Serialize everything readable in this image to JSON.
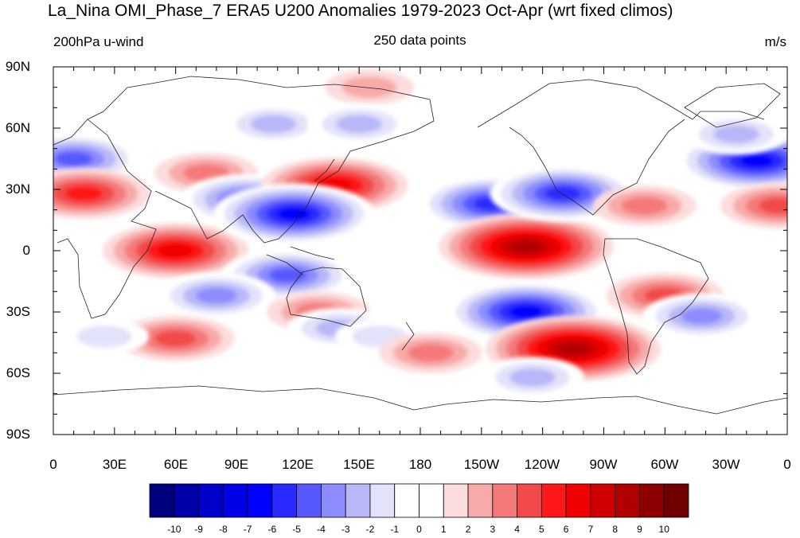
{
  "title": "La_Nina OMI_Phase_7 ERA5 U200 Anomalies 1979-2023 Oct-Apr (wrt fixed climos)",
  "subtitle_left": "200hPa u-wind",
  "subtitle_center": "250 data points",
  "subtitle_right": "m/s",
  "lat_labels": [
    "90N",
    "60N",
    "30N",
    "0",
    "30S",
    "60S",
    "90S"
  ],
  "lon_labels": [
    "0",
    "30E",
    "60E",
    "90E",
    "120E",
    "150E",
    "180",
    "150W",
    "120W",
    "90W",
    "60W",
    "30W",
    "0"
  ],
  "colorbar": {
    "labels": [
      "-10",
      "-9",
      "-8",
      "-7",
      "-6",
      "-5",
      "-4",
      "-3",
      "-2",
      "-1",
      "0",
      "1",
      "2",
      "3",
      "4",
      "5",
      "6",
      "7",
      "8",
      "9",
      "10"
    ],
    "colors": [
      "#00007e",
      "#0000a8",
      "#0000c8",
      "#0000e6",
      "#0000ff",
      "#2a2aff",
      "#5858ff",
      "#8c8cff",
      "#b8b8f8",
      "#e2e2fa",
      "#ffffff",
      "#ffffff",
      "#fcdcdc",
      "#f8aaaa",
      "#f47a7a",
      "#f24a4a",
      "#ff1818",
      "#f00000",
      "#d00000",
      "#b00000",
      "#8e0000",
      "#700000"
    ]
  },
  "anomalies": [
    {
      "lon": 10,
      "lat": 45,
      "v": -5
    },
    {
      "lon": 15,
      "lat": 28,
      "v": 5
    },
    {
      "lon": 60,
      "lat": 0,
      "v": 6
    },
    {
      "lon": 75,
      "lat": 38,
      "v": 3
    },
    {
      "lon": 95,
      "lat": 25,
      "v": -5
    },
    {
      "lon": 108,
      "lat": 62,
      "v": -3
    },
    {
      "lon": 138,
      "lat": 32,
      "v": 6
    },
    {
      "lon": 118,
      "lat": 18,
      "v": -7
    },
    {
      "lon": 115,
      "lat": -12,
      "v": -5
    },
    {
      "lon": 80,
      "lat": -22,
      "v": -4
    },
    {
      "lon": 130,
      "lat": -30,
      "v": 3
    },
    {
      "lon": 60,
      "lat": -43,
      "v": 4
    },
    {
      "lon": 140,
      "lat": -38,
      "v": -3
    },
    {
      "lon": 155,
      "lat": 80,
      "v": 2
    },
    {
      "lon": 150,
      "lat": 62,
      "v": -3
    },
    {
      "lon": 215,
      "lat": 23,
      "v": -6
    },
    {
      "lon": 232,
      "lat": 2,
      "v": 8
    },
    {
      "lon": 250,
      "lat": 28,
      "v": -6
    },
    {
      "lon": 232,
      "lat": -30,
      "v": -7
    },
    {
      "lon": 255,
      "lat": -48,
      "v": 8
    },
    {
      "lon": 235,
      "lat": -62,
      "v": -3
    },
    {
      "lon": 290,
      "lat": 22,
      "v": 3
    },
    {
      "lon": 300,
      "lat": -22,
      "v": 4
    },
    {
      "lon": 318,
      "lat": -32,
      "v": -4
    },
    {
      "lon": 345,
      "lat": 44,
      "v": -7
    },
    {
      "lon": 356,
      "lat": 22,
      "v": 4
    },
    {
      "lon": 335,
      "lat": 57,
      "v": -3
    },
    {
      "lon": 160,
      "lat": -42,
      "v": -2
    },
    {
      "lon": 25,
      "lat": -42,
      "v": -2
    },
    {
      "lon": 185,
      "lat": -50,
      "v": 3
    }
  ]
}
